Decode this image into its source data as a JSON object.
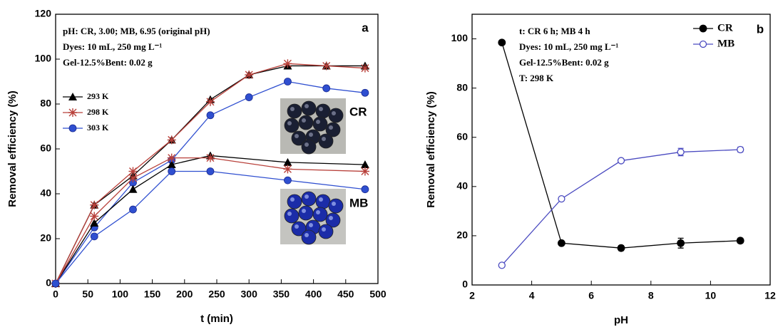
{
  "chart_data": [
    {
      "type": "line",
      "panel": "a",
      "x_label": "t (min)",
      "y_label": "Removal efficiency (%)",
      "xlim": [
        0,
        500
      ],
      "xticks": [
        0,
        50,
        100,
        150,
        200,
        250,
        300,
        350,
        400,
        450,
        500
      ],
      "ylim": [
        0,
        120
      ],
      "yticks": [
        0,
        20,
        40,
        60,
        80,
        100,
        120
      ],
      "annotations": [
        "pH: CR, 3.00; MB, 6.95 (original pH)",
        "Dyes: 10 mL, 250 mg L⁻¹",
        "Gel-12.5%Bent: 0.02 g",
        "a",
        "CR",
        "MB"
      ],
      "series": [
        {
          "name": "293 K",
          "color": "#000000",
          "marker": "triangle",
          "x": [
            0,
            60,
            120,
            180,
            240,
            300,
            360,
            420,
            480
          ],
          "values": [
            0,
            35,
            48,
            64,
            82,
            93,
            97,
            97,
            97
          ]
        },
        {
          "name": "298 K",
          "color": "#b8403a",
          "marker": "star",
          "x": [
            0,
            60,
            120,
            180,
            240,
            300,
            360,
            420,
            480
          ],
          "values": [
            0,
            35,
            50,
            64,
            81,
            93,
            98,
            97,
            96
          ]
        },
        {
          "name": "303 K",
          "color": "#2f4fd0",
          "marker": "circle",
          "x": [
            0,
            60,
            120,
            180,
            240,
            300,
            360,
            420,
            480
          ],
          "values": [
            0,
            25,
            45,
            55,
            75,
            83,
            90,
            87,
            85
          ]
        },
        {
          "color": "#000000",
          "marker": "triangle",
          "x": [
            0,
            60,
            120,
            180,
            240,
            360,
            480
          ],
          "values": [
            0,
            27,
            42,
            53,
            57,
            54,
            53
          ]
        },
        {
          "color": "#b8403a",
          "marker": "star",
          "x": [
            0,
            60,
            120,
            180,
            240,
            360,
            480
          ],
          "values": [
            0,
            30,
            47,
            56,
            56,
            51,
            50
          ]
        },
        {
          "color": "#2f4fd0",
          "marker": "circle",
          "x": [
            0,
            60,
            120,
            180,
            240,
            360,
            480
          ],
          "values": [
            0,
            21,
            33,
            50,
            50,
            46,
            42
          ]
        }
      ]
    },
    {
      "type": "line",
      "panel": "b",
      "x_label": "pH",
      "y_label": "Removal efficiency (%)",
      "xlim": [
        2,
        12
      ],
      "xticks": [
        2,
        4,
        6,
        8,
        10,
        12
      ],
      "ylim": [
        0,
        110
      ],
      "yticks": [
        0,
        20,
        40,
        60,
        80,
        100
      ],
      "annotations": [
        "t: CR 6 h; MB 4 h",
        "Dyes: 10 mL, 250 mg L⁻¹",
        "Gel-12.5%Bent: 0.02 g",
        "T: 298 K",
        "b"
      ],
      "series": [
        {
          "name": "CR",
          "color": "#000000",
          "marker": "circle",
          "x": [
            3,
            5,
            7,
            9,
            11
          ],
          "values": [
            98.5,
            17,
            15,
            17,
            18
          ],
          "errors": [
            0,
            0.5,
            1,
            2,
            1
          ]
        },
        {
          "name": "MB",
          "color": "#4a4ac0",
          "marker": "open-circle",
          "x": [
            3,
            5,
            7,
            9,
            11
          ],
          "values": [
            8,
            35,
            50.5,
            54,
            55
          ],
          "errors": [
            0,
            0.5,
            0.5,
            1.5,
            1
          ]
        }
      ]
    }
  ]
}
